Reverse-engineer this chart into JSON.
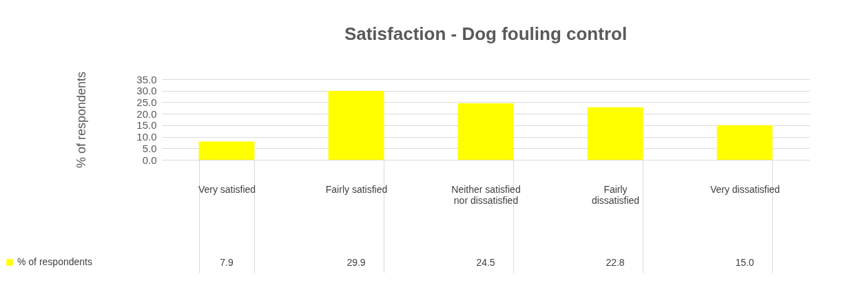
{
  "chart_data": {
    "type": "bar",
    "title": "Satisfaction - Dog fouling control",
    "ylabel": "% of respondents",
    "categories": [
      "Very satisfied",
      "Fairly satisfied",
      "Neither satisfied nor dissatisfied",
      "Fairly dissatisfied",
      "Very dissatisfied"
    ],
    "series": [
      {
        "name": "% of respondents",
        "color": "#ffff00",
        "values": [
          7.9,
          29.9,
          24.5,
          22.8,
          15.0
        ]
      }
    ],
    "value_labels": [
      "7.9",
      "29.9",
      "24.5",
      "22.8",
      "15.0"
    ],
    "ylim": [
      0,
      35
    ],
    "yticks": [
      {
        "value": 0,
        "label": "0.0"
      },
      {
        "value": 5,
        "label": "5.0"
      },
      {
        "value": 10,
        "label": "10.0"
      },
      {
        "value": 15,
        "label": "15.0"
      },
      {
        "value": 20,
        "label": "20.0"
      },
      {
        "value": 25,
        "label": "25.0"
      },
      {
        "value": 30,
        "label": "30.0"
      },
      {
        "value": 35,
        "label": "35.0"
      }
    ],
    "grid": "y",
    "legend": "bottom"
  }
}
